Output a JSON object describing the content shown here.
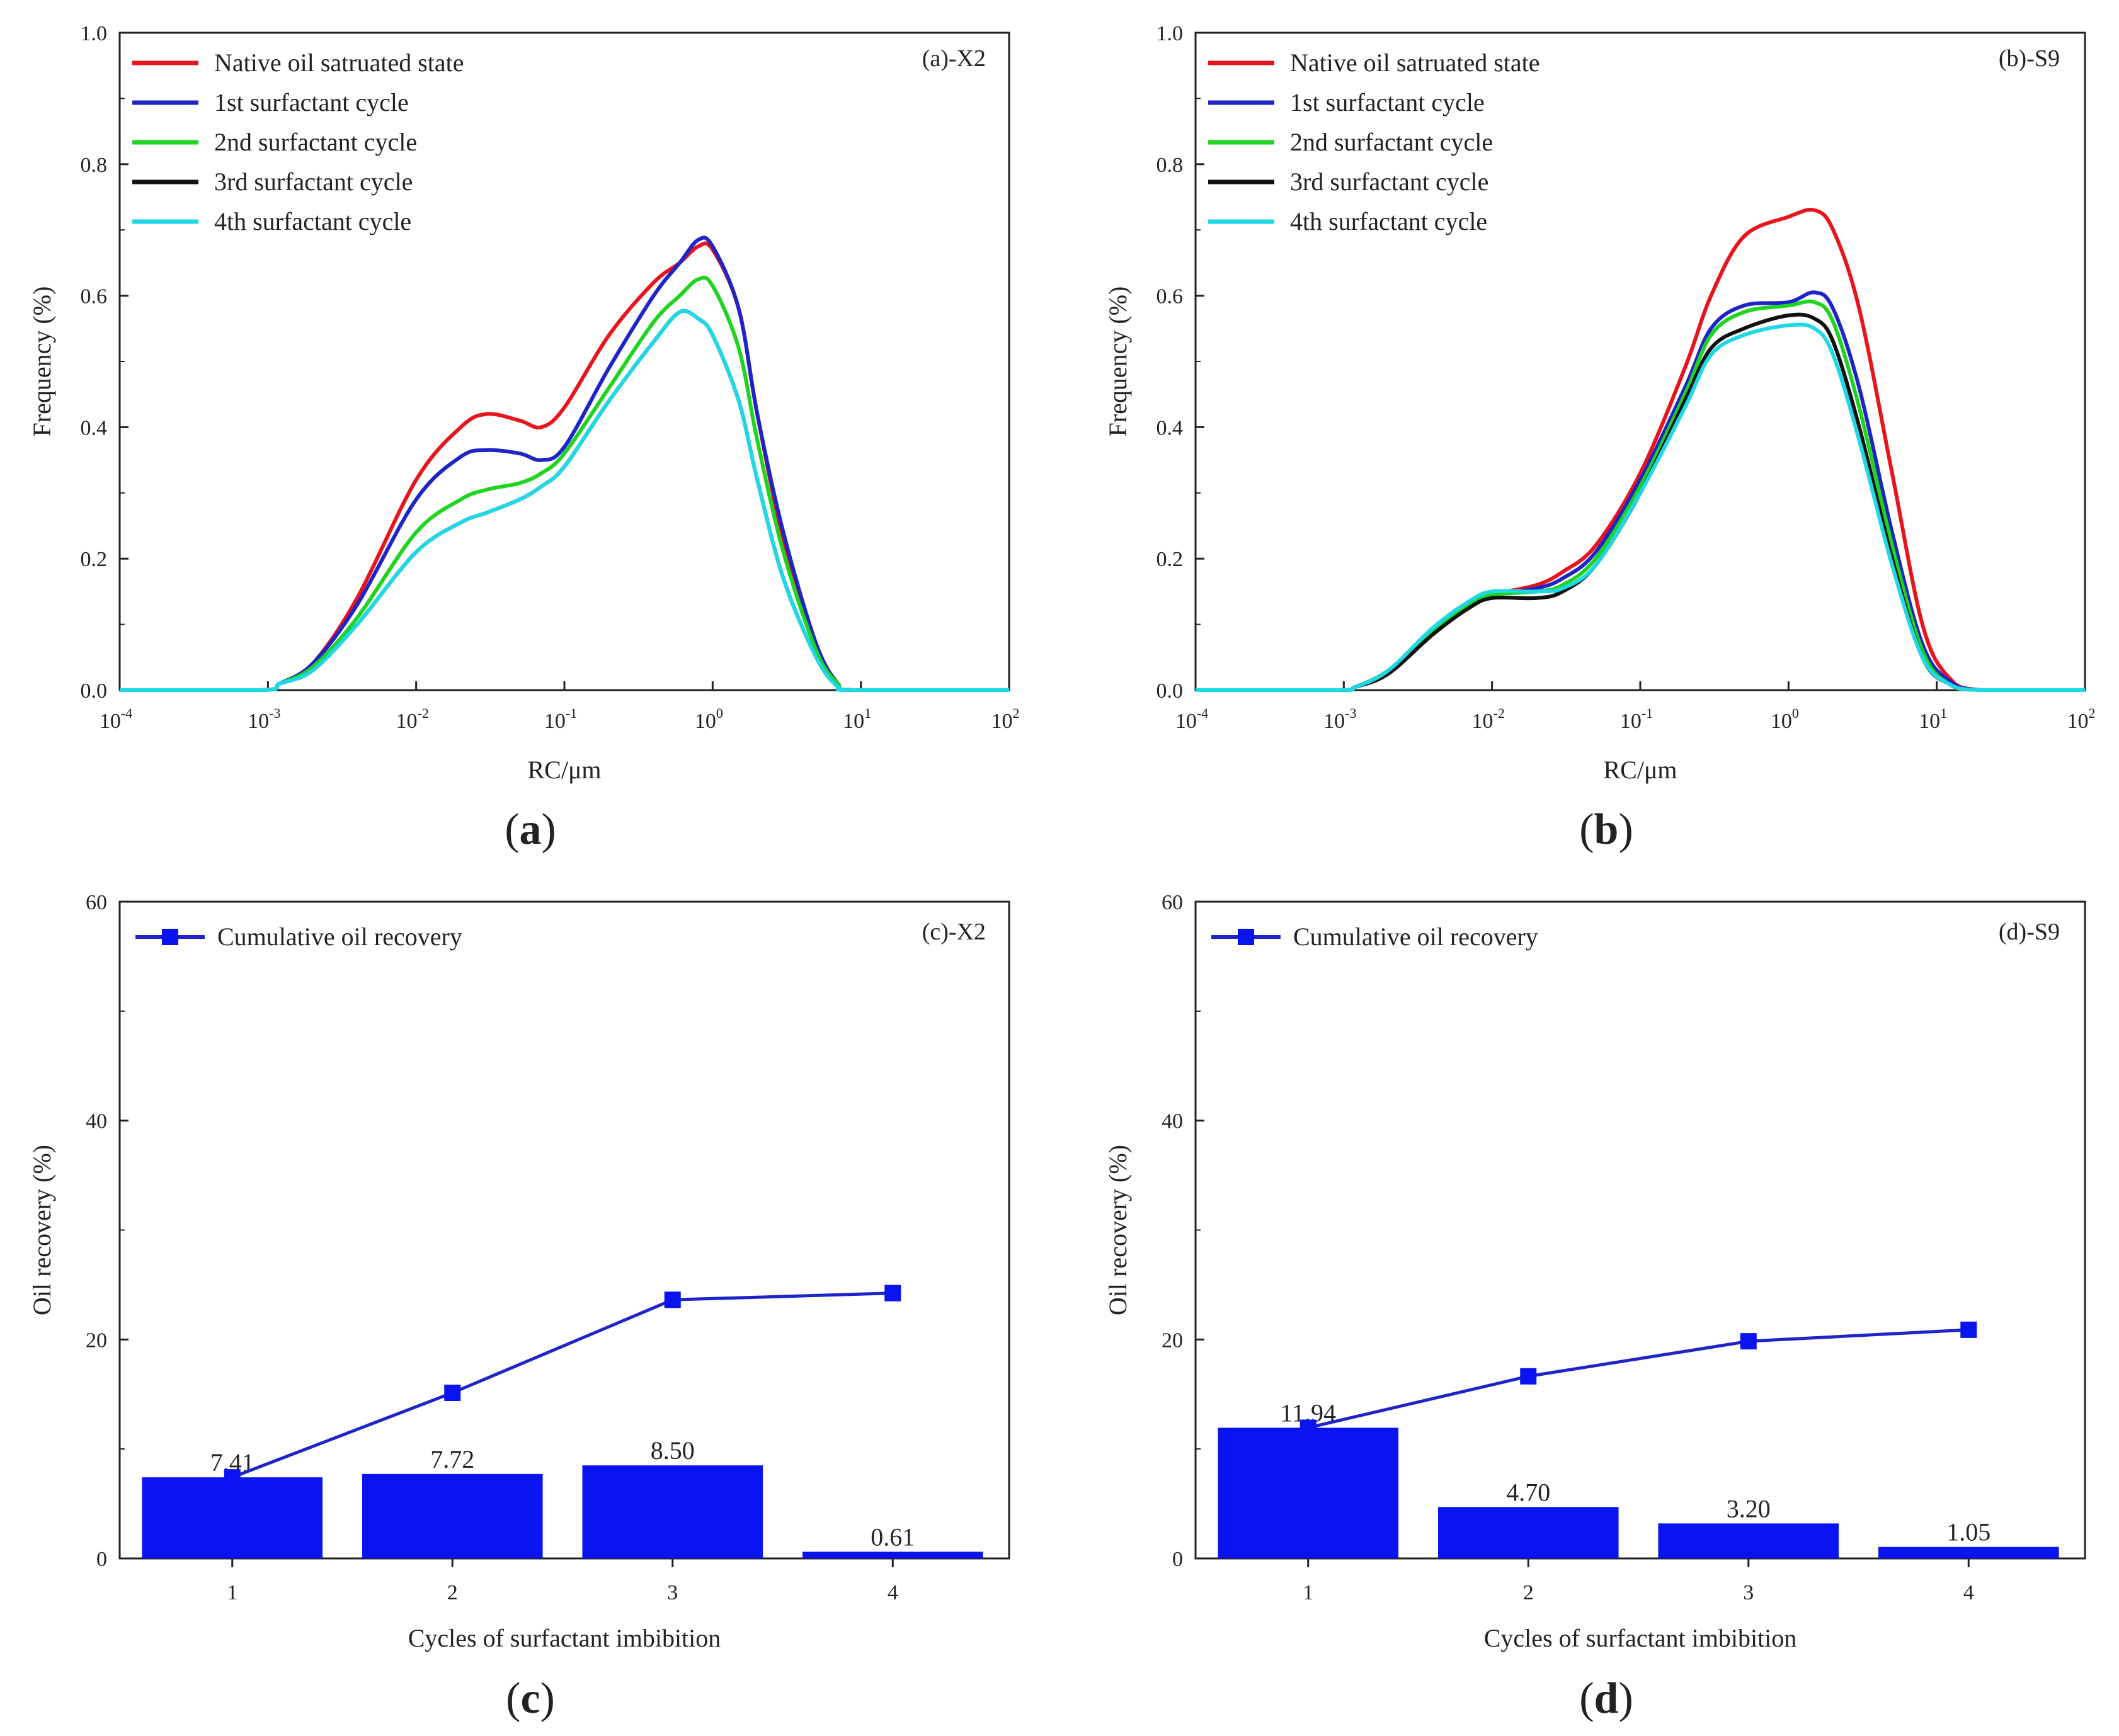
{
  "chart_data": [
    {
      "panel": "a",
      "type": "line",
      "caption": "a",
      "tag": "(a)-X2",
      "xlabel": "RC/μm",
      "ylabel": "Frequency (%)",
      "xscale": "log",
      "xlim": [
        0.0001,
        100
      ],
      "ylim": [
        0,
        1.0
      ],
      "x_ticks": [
        {
          "base": "10",
          "exp": "-4",
          "value": 0.0001
        },
        {
          "base": "10",
          "exp": "-3",
          "value": 0.001
        },
        {
          "base": "10",
          "exp": "-2",
          "value": 0.01
        },
        {
          "base": "10",
          "exp": "-1",
          "value": 0.1
        },
        {
          "base": "10",
          "exp": "0",
          "value": 1
        },
        {
          "base": "10",
          "exp": "1",
          "value": 10
        },
        {
          "base": "10",
          "exp": "2",
          "value": 100
        }
      ],
      "y_ticks": [
        "0.0",
        "0.2",
        "0.4",
        "0.6",
        "0.8",
        "1.0"
      ],
      "legend_position": "top-left",
      "series": [
        {
          "name": "Native oil satruated state",
          "color": "#e8141c",
          "x": [
            0.0001,
            0.0009,
            0.0012,
            0.002,
            0.004,
            0.01,
            0.02,
            0.03,
            0.05,
            0.07,
            0.1,
            0.2,
            0.4,
            0.6,
            0.8,
            1.0,
            1.5,
            2.0,
            3.0,
            5.0,
            7.0,
            9.0,
            100
          ],
          "y": [
            0,
            0,
            0.01,
            0.04,
            0.14,
            0.32,
            0.4,
            0.42,
            0.41,
            0.4,
            0.43,
            0.54,
            0.62,
            0.65,
            0.675,
            0.67,
            0.58,
            0.42,
            0.23,
            0.07,
            0.01,
            0,
            0
          ]
        },
        {
          "name": "1st surfactant cycle",
          "color": "#1f24c8",
          "x": [
            0.0001,
            0.0009,
            0.0012,
            0.002,
            0.004,
            0.01,
            0.02,
            0.03,
            0.05,
            0.07,
            0.1,
            0.2,
            0.4,
            0.6,
            0.8,
            1.0,
            1.5,
            2.0,
            3.0,
            5.0,
            7.0,
            9.0,
            100
          ],
          "y": [
            0,
            0,
            0.01,
            0.04,
            0.13,
            0.29,
            0.355,
            0.365,
            0.36,
            0.35,
            0.37,
            0.49,
            0.6,
            0.65,
            0.685,
            0.675,
            0.58,
            0.42,
            0.24,
            0.07,
            0.01,
            0,
            0
          ]
        },
        {
          "name": "2nd surfactant cycle",
          "color": "#1ed41e",
          "x": [
            0.0001,
            0.0009,
            0.0012,
            0.002,
            0.004,
            0.01,
            0.02,
            0.03,
            0.05,
            0.07,
            0.1,
            0.2,
            0.4,
            0.6,
            0.8,
            1.0,
            1.5,
            2.0,
            3.0,
            5.0,
            7.0,
            9.0,
            100
          ],
          "y": [
            0,
            0,
            0.01,
            0.035,
            0.11,
            0.24,
            0.29,
            0.305,
            0.315,
            0.33,
            0.36,
            0.46,
            0.56,
            0.6,
            0.625,
            0.615,
            0.52,
            0.38,
            0.21,
            0.06,
            0.01,
            0,
            0
          ]
        },
        {
          "name": "3rd surfactant cycle",
          "color": "#111111",
          "x": [
            0.0001,
            0.0009,
            0.0012,
            0.002,
            0.004,
            0.01,
            0.02,
            0.03,
            0.05,
            0.07,
            0.1,
            0.2,
            0.4,
            0.6,
            0.8,
            1.0,
            1.5,
            2.0,
            3.0,
            5.0,
            7.0,
            9.0,
            100
          ],
          "y": [
            0,
            0,
            0.01,
            0.03,
            0.1,
            0.21,
            0.255,
            0.27,
            0.29,
            0.31,
            0.34,
            0.44,
            0.53,
            0.575,
            0.565,
            0.54,
            0.44,
            0.32,
            0.17,
            0.05,
            0.005,
            0,
            0
          ]
        },
        {
          "name": "4th surfactant cycle",
          "color": "#1ed8e6",
          "x": [
            0.0001,
            0.0009,
            0.0012,
            0.002,
            0.004,
            0.01,
            0.02,
            0.03,
            0.05,
            0.07,
            0.1,
            0.2,
            0.4,
            0.6,
            0.8,
            1.0,
            1.5,
            2.0,
            3.0,
            5.0,
            7.0,
            9.0,
            100
          ],
          "y": [
            0,
            0,
            0.01,
            0.03,
            0.1,
            0.21,
            0.255,
            0.27,
            0.29,
            0.31,
            0.34,
            0.44,
            0.53,
            0.575,
            0.565,
            0.54,
            0.44,
            0.32,
            0.17,
            0.05,
            0.005,
            0,
            0
          ]
        }
      ]
    },
    {
      "panel": "b",
      "type": "line",
      "caption": "b",
      "tag": "(b)-S9",
      "xlabel": "RC/μm",
      "ylabel": "Frequency (%)",
      "xscale": "log",
      "xlim": [
        0.0001,
        100
      ],
      "ylim": [
        0,
        1.0
      ],
      "x_ticks": [
        {
          "base": "10",
          "exp": "-4",
          "value": 0.0001
        },
        {
          "base": "10",
          "exp": "-3",
          "value": 0.001
        },
        {
          "base": "10",
          "exp": "-2",
          "value": 0.01
        },
        {
          "base": "10",
          "exp": "-1",
          "value": 0.1
        },
        {
          "base": "10",
          "exp": "0",
          "value": 1
        },
        {
          "base": "10",
          "exp": "1",
          "value": 10
        },
        {
          "base": "10",
          "exp": "2",
          "value": 100
        }
      ],
      "y_ticks": [
        "0.0",
        "0.2",
        "0.4",
        "0.6",
        "0.8",
        "1.0"
      ],
      "legend_position": "top-left",
      "series": [
        {
          "name": "Native oil satruated state",
          "color": "#e8141c",
          "x": [
            0.0001,
            0.0009,
            0.0012,
            0.002,
            0.004,
            0.007,
            0.01,
            0.02,
            0.03,
            0.05,
            0.1,
            0.2,
            0.3,
            0.5,
            1.0,
            1.5,
            2.0,
            3.0,
            5.0,
            8.0,
            12.0,
            20.0,
            100
          ],
          "y": [
            0,
            0,
            0.005,
            0.03,
            0.09,
            0.13,
            0.145,
            0.16,
            0.18,
            0.22,
            0.33,
            0.49,
            0.6,
            0.69,
            0.72,
            0.73,
            0.7,
            0.58,
            0.33,
            0.1,
            0.02,
            0,
            0
          ]
        },
        {
          "name": "1st surfactant cycle",
          "color": "#1f24c8",
          "x": [
            0.0001,
            0.0009,
            0.0012,
            0.002,
            0.004,
            0.007,
            0.01,
            0.02,
            0.03,
            0.05,
            0.1,
            0.2,
            0.3,
            0.5,
            1.0,
            1.5,
            2.0,
            3.0,
            5.0,
            8.0,
            12.0,
            20.0,
            100
          ],
          "y": [
            0,
            0,
            0.005,
            0.03,
            0.09,
            0.13,
            0.145,
            0.155,
            0.17,
            0.21,
            0.32,
            0.46,
            0.55,
            0.585,
            0.59,
            0.605,
            0.58,
            0.46,
            0.24,
            0.07,
            0.015,
            0,
            0
          ]
        },
        {
          "name": "2nd surfactant cycle",
          "color": "#1ed41e",
          "x": [
            0.0001,
            0.0009,
            0.0012,
            0.002,
            0.004,
            0.007,
            0.01,
            0.02,
            0.03,
            0.05,
            0.1,
            0.2,
            0.3,
            0.5,
            1.0,
            1.5,
            2.0,
            3.0,
            5.0,
            8.0,
            12.0,
            20.0,
            100
          ],
          "y": [
            0,
            0,
            0.005,
            0.03,
            0.09,
            0.13,
            0.145,
            0.15,
            0.16,
            0.2,
            0.31,
            0.45,
            0.54,
            0.575,
            0.585,
            0.59,
            0.56,
            0.43,
            0.22,
            0.06,
            0.01,
            0,
            0
          ]
        },
        {
          "name": "3rd surfactant cycle",
          "color": "#111111",
          "x": [
            0.0001,
            0.0009,
            0.0012,
            0.002,
            0.004,
            0.007,
            0.01,
            0.02,
            0.03,
            0.05,
            0.1,
            0.2,
            0.3,
            0.5,
            1.0,
            1.5,
            2.0,
            3.0,
            5.0,
            8.0,
            12.0,
            20.0,
            100
          ],
          "y": [
            0,
            0,
            0.005,
            0.025,
            0.085,
            0.125,
            0.14,
            0.14,
            0.15,
            0.19,
            0.3,
            0.44,
            0.52,
            0.55,
            0.57,
            0.565,
            0.53,
            0.4,
            0.2,
            0.05,
            0.01,
            0,
            0
          ]
        },
        {
          "name": "4th surfactant cycle",
          "color": "#1ed8e6",
          "x": [
            0.0001,
            0.0009,
            0.0012,
            0.002,
            0.004,
            0.007,
            0.01,
            0.02,
            0.03,
            0.05,
            0.1,
            0.2,
            0.3,
            0.5,
            1.0,
            1.5,
            2.0,
            3.0,
            5.0,
            8.0,
            12.0,
            20.0,
            100
          ],
          "y": [
            0,
            0,
            0.005,
            0.03,
            0.095,
            0.135,
            0.15,
            0.15,
            0.155,
            0.19,
            0.3,
            0.43,
            0.51,
            0.54,
            0.555,
            0.55,
            0.51,
            0.38,
            0.19,
            0.05,
            0.01,
            0,
            0
          ]
        }
      ]
    },
    {
      "panel": "c",
      "type": "bar",
      "caption": "c",
      "tag": "(c)-X2",
      "xlabel": "Cycles of surfactant imbibition",
      "ylabel": "Oil recovery (%)",
      "ylim": [
        0,
        60
      ],
      "y_ticks": [
        "0",
        "20",
        "40",
        "60"
      ],
      "categories": [
        "1",
        "2",
        "3",
        "4"
      ],
      "values": [
        7.41,
        7.72,
        8.5,
        0.61
      ],
      "value_labels": [
        "7.41",
        "7.72",
        "8.50",
        "0.61"
      ],
      "bar_color": "#0a14f0",
      "legend_position": "top-left",
      "line_series": {
        "name": "Cumulative oil recovery",
        "color": "#1f24c8",
        "values": [
          7.41,
          15.13,
          23.63,
          24.24
        ]
      }
    },
    {
      "panel": "d",
      "type": "bar",
      "caption": "d",
      "tag": "(d)-S9",
      "xlabel": "Cycles of surfactant imbibition",
      "ylabel": "Oil recovery (%)",
      "ylim": [
        0,
        60
      ],
      "y_ticks": [
        "0",
        "20",
        "40",
        "60"
      ],
      "categories": [
        "1",
        "2",
        "3",
        "4"
      ],
      "values": [
        11.94,
        4.7,
        3.2,
        1.05
      ],
      "value_labels": [
        "11.94",
        "4.70",
        "3.20",
        "1.05"
      ],
      "bar_color": "#0a14f0",
      "legend_position": "top-left",
      "line_series": {
        "name": "Cumulative oil recovery",
        "color": "#1f24c8",
        "values": [
          11.94,
          16.64,
          19.84,
          20.89
        ]
      }
    }
  ]
}
